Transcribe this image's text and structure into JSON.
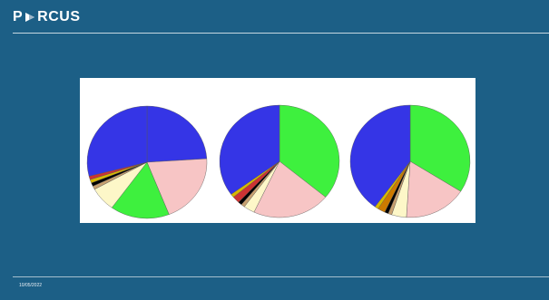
{
  "header": {
    "brand": "PORCUS",
    "brand_left": "P",
    "brand_right": "RCUS"
  },
  "footer": {
    "date": "10/05/2022"
  },
  "colors": {
    "background": "#1c5f86",
    "divider": "#ffffff"
  },
  "chart_data": [
    {
      "type": "pie",
      "title": "",
      "slices": [
        {
          "value": 24,
          "color": "#3535e6"
        },
        {
          "value": 20,
          "color": "#f7c5c5"
        },
        {
          "value": 16,
          "color": "#3ef03e"
        },
        {
          "value": 7,
          "color": "#fdf7c8"
        },
        {
          "value": 1,
          "color": "#c7a070"
        },
        {
          "value": 1,
          "color": "#000000"
        },
        {
          "value": 1,
          "color": "#d8b800"
        },
        {
          "value": 1,
          "color": "#cc3333"
        },
        {
          "value": 29,
          "color": "#3535e6"
        }
      ]
    },
    {
      "type": "pie",
      "title": "",
      "slices": [
        {
          "value": 36,
          "color": "#3ef03e"
        },
        {
          "value": 21,
          "color": "#f7c5c5"
        },
        {
          "value": 3,
          "color": "#fdf7c8"
        },
        {
          "value": 1,
          "color": "#c7a070"
        },
        {
          "value": 1,
          "color": "#000000"
        },
        {
          "value": 2,
          "color": "#cc3333"
        },
        {
          "value": 1,
          "color": "#d8b800"
        },
        {
          "value": 35,
          "color": "#3535e6"
        }
      ]
    },
    {
      "type": "pie",
      "title": "",
      "slices": [
        {
          "value": 34,
          "color": "#3ef03e"
        },
        {
          "value": 17,
          "color": "#f7c5c5"
        },
        {
          "value": 4,
          "color": "#fdf7c8"
        },
        {
          "value": 1,
          "color": "#c7a070"
        },
        {
          "value": 1,
          "color": "#000000"
        },
        {
          "value": 2,
          "color": "#cc7a00"
        },
        {
          "value": 1,
          "color": "#d8b800"
        },
        {
          "value": 40,
          "color": "#3535e6"
        }
      ]
    }
  ]
}
